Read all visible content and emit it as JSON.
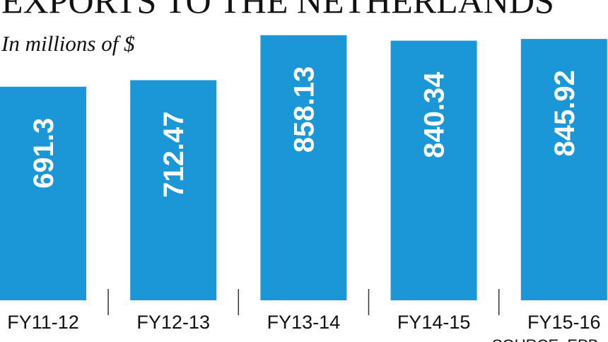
{
  "chart_data": {
    "type": "bar",
    "title": "EXPORTS TO THE NETHERLANDS",
    "subtitle": "In millions of $",
    "categories": [
      "FY11-12",
      "FY12-13",
      "FY13-14",
      "FY14-15",
      "FY15-16"
    ],
    "values": [
      691.3,
      712.47,
      858.13,
      840.34,
      845.92
    ],
    "color": "#1b96d6",
    "ylim": [
      0,
      972
    ],
    "source": "SOURCE: EPB"
  }
}
